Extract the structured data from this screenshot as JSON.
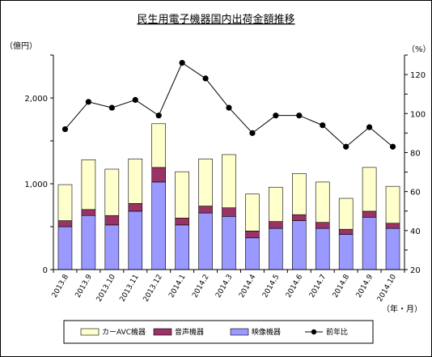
{
  "chart_data": {
    "type": "bar",
    "stacked": true,
    "title": "民生用電子機器国内出荷金額推移",
    "y_left_unit": "（億円）",
    "y_right_unit": "（%）",
    "x_unit": "（年・月）",
    "y_left_ticks": [
      "0",
      "1,000",
      "2,000"
    ],
    "y_left_range": [
      0,
      2500
    ],
    "y_right_ticks": [
      "20",
      "40",
      "60",
      "80",
      "100",
      "120"
    ],
    "y_right_range": [
      20,
      130
    ],
    "grid": false,
    "legend_position": "bottom",
    "categories": [
      "2013.8",
      "2013.9",
      "2013.10",
      "2013.11",
      "2013.12",
      "2014.1",
      "2014.2",
      "2014.3",
      "2014.4",
      "2014.5",
      "2014.6",
      "2014.7",
      "2014.8",
      "2014.9",
      "2014.10"
    ],
    "series": [
      {
        "name": "映像機器",
        "color": "#9999ff",
        "axis": "left",
        "values": [
          500,
          630,
          520,
          680,
          1020,
          520,
          660,
          620,
          370,
          480,
          570,
          480,
          410,
          610,
          480
        ]
      },
      {
        "name": "音声機器",
        "color": "#993366",
        "axis": "left",
        "values": [
          70,
          70,
          110,
          90,
          170,
          80,
          80,
          100,
          80,
          80,
          70,
          70,
          60,
          70,
          60
        ]
      },
      {
        "name": "カーAVC機器",
        "color": "#ffffcc",
        "axis": "left",
        "values": [
          420,
          580,
          540,
          520,
          510,
          540,
          550,
          620,
          430,
          400,
          480,
          470,
          360,
          510,
          430
        ]
      },
      {
        "name": "前年比",
        "type": "line",
        "color": "#000000",
        "axis": "right",
        "values": [
          92,
          106,
          103,
          107,
          99,
          126,
          118,
          103,
          90,
          99,
          99,
          94,
          83,
          93,
          83
        ]
      }
    ]
  }
}
